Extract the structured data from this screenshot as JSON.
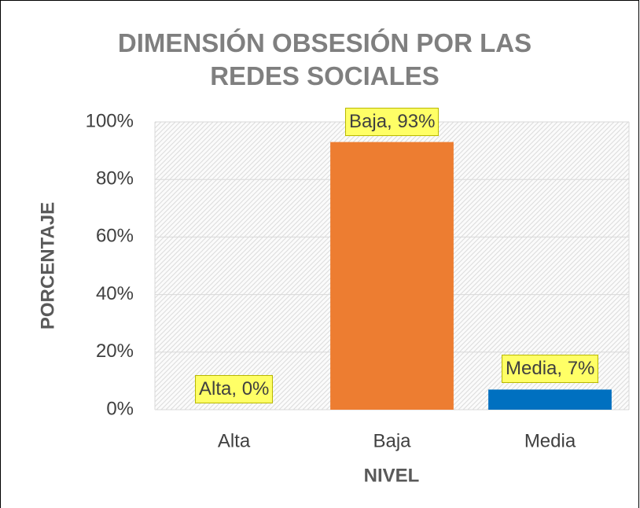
{
  "chart_data": {
    "type": "bar",
    "title": "DIMENSIÓN OBSESIÓN POR LAS REDES SOCIALES",
    "x_label": "NIVEL",
    "y_label": "PORCENTAJE",
    "categories": [
      "Alta",
      "Baja",
      "Media"
    ],
    "values": [
      0,
      93,
      7
    ],
    "value_labels": [
      "Alta, 0%",
      "Baja, 93%",
      "Media, 7%"
    ],
    "colors": [
      null,
      "#ed7d31",
      "#0070c0"
    ],
    "ylim": [
      0,
      100
    ],
    "yticks": [
      {
        "value": 0,
        "label": "0%"
      },
      {
        "value": 20,
        "label": "20%"
      },
      {
        "value": 40,
        "label": "40%"
      },
      {
        "value": 60,
        "label": "60%"
      },
      {
        "value": 80,
        "label": "80%"
      },
      {
        "value": 100,
        "label": "100%"
      }
    ],
    "grid": true
  }
}
